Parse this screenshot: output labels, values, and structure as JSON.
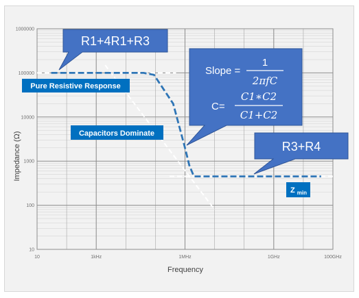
{
  "chart_data": {
    "type": "line",
    "xlabel": "Frequency",
    "ylabel": "Impedance (Ω)",
    "x_scale": "log",
    "y_scale": "log",
    "xlim": [
      10,
      100000000000
    ],
    "ylim": [
      10,
      1000000
    ],
    "grid": true,
    "x_ticks": [
      {
        "value": 10,
        "label": "10"
      },
      {
        "value": 1000,
        "label": "1kHz"
      },
      {
        "value": 1000000,
        "label": "1MHz"
      },
      {
        "value": 1000000000,
        "label": "1GHz"
      },
      {
        "value": 100000000000,
        "label": "100GHz"
      }
    ],
    "y_ticks": [
      {
        "value": 1000000,
        "label": "1000000"
      },
      {
        "value": 100000,
        "label": "100000"
      },
      {
        "value": 10000,
        "label": "10000"
      },
      {
        "value": 1000,
        "label": "1000"
      },
      {
        "value": 100,
        "label": "100"
      },
      {
        "value": 10,
        "label": "10"
      }
    ],
    "series": [
      {
        "color": "#2e75b6",
        "style": "dashed",
        "x": [
          30,
          40000,
          90000,
          400000,
          1000000,
          1400000,
          2000000,
          10000000,
          40000000000
        ],
        "y": [
          100000,
          100000,
          90000,
          20000,
          2000,
          800,
          450,
          450,
          450
        ]
      }
    ],
    "asymptotes": [
      {
        "color": "#ffffff",
        "style": "dashed",
        "x": [
          10,
          500000
        ],
        "y": [
          100000,
          100000
        ]
      },
      {
        "color": "#ffffff",
        "style": "dashed",
        "x": [
          2000,
          10000000
        ],
        "y": [
          150000,
          80
        ]
      },
      {
        "color": "#ffffff",
        "style": "dashed",
        "x": [
          300000,
          100000000000
        ],
        "y": [
          450,
          450
        ]
      }
    ],
    "annotations": {
      "resistive_box": "Pure Resistive Response",
      "capacitor_box": "Capacitors Dominate",
      "zmin_main": "Z",
      "zmin_sub": "min",
      "callout_top": "R1+4R1+R3",
      "callout_right": "R3+R4",
      "slope_label": "Slope =",
      "slope_numerator": "1",
      "slope_denominator": "2πfC",
      "c_label": "C=",
      "c_numerator": "C1∗C2",
      "c_denominator": "C1+C2"
    },
    "colors": {
      "callout_fill": "#4472c4",
      "callout_stroke": "#2f5597",
      "label_box_fill": "#0070c0",
      "curve": "#2e75b6",
      "grid": "#8c8c8c",
      "plot_background": "#f2f2f2"
    }
  }
}
